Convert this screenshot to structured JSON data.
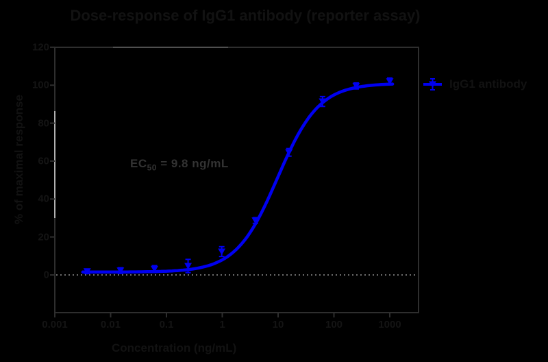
{
  "style": {
    "background": "#000000",
    "curve_color": "#0000f0",
    "marker_color": "#0000f0",
    "frame_color": "#2e2e2e",
    "frame_highlight_top": "#4f4f4f",
    "frame_highlight_left": "#b0b0b0",
    "baseline_dotted_color": "#6f6f6f",
    "text_color_hidden": "#121212",
    "annotation_color": "#333333"
  },
  "chart_data": {
    "type": "scatter",
    "title": "Dose-response of IgG1 antibody (reporter assay)",
    "xlabel": "Concentration (ng/mL)",
    "ylabel": "% of maximal response",
    "x_scale": "log",
    "x_ticks": [
      "0.001",
      "0.01",
      "0.1",
      "1",
      "10",
      "100",
      "1000"
    ],
    "x_ticks_log": [
      -3,
      -2,
      -1,
      0,
      1,
      2,
      3
    ],
    "y_ticks": [
      "120",
      "100",
      "80",
      "60",
      "40",
      "20",
      "0"
    ],
    "y_ticks_values": [
      120,
      100,
      80,
      60,
      40,
      20,
      0
    ],
    "ylim": [
      -20,
      120
    ],
    "xlim_log": [
      -3.02,
      3.52
    ],
    "grid": false,
    "baseline_dotted_y": 0,
    "series": [
      {
        "name": "IgG1 antibody",
        "marker": "inverted-triangle",
        "x": [
          0.0038,
          0.015,
          0.061,
          0.244,
          0.977,
          3.91,
          15.6,
          62.5,
          250,
          1000
        ],
        "y_mean": [
          1.9,
          2.3,
          3.1,
          4.7,
          12.3,
          28.7,
          64.6,
          91.4,
          99.6,
          102.0
        ],
        "y_sem": [
          1.2,
          1.5,
          1.8,
          3.5,
          2.6,
          1.5,
          2.0,
          2.6,
          1.6,
          1.8
        ]
      }
    ],
    "fit": {
      "model": "four-parameter logistic (variable slope)",
      "bottom": 1.5,
      "top": 101,
      "ec50": 9.8,
      "hill": 1.17,
      "curve_logx_start": -2.5,
      "curve_logx_end": 3.05
    },
    "legend": {
      "label": "IgG1 antibody",
      "position": "right-outside"
    },
    "annotation": {
      "full": "EC50 = 9.8 ng/mL",
      "prefix": "EC",
      "subscript": "50",
      "suffix": " = 9.8 ng/mL"
    }
  }
}
